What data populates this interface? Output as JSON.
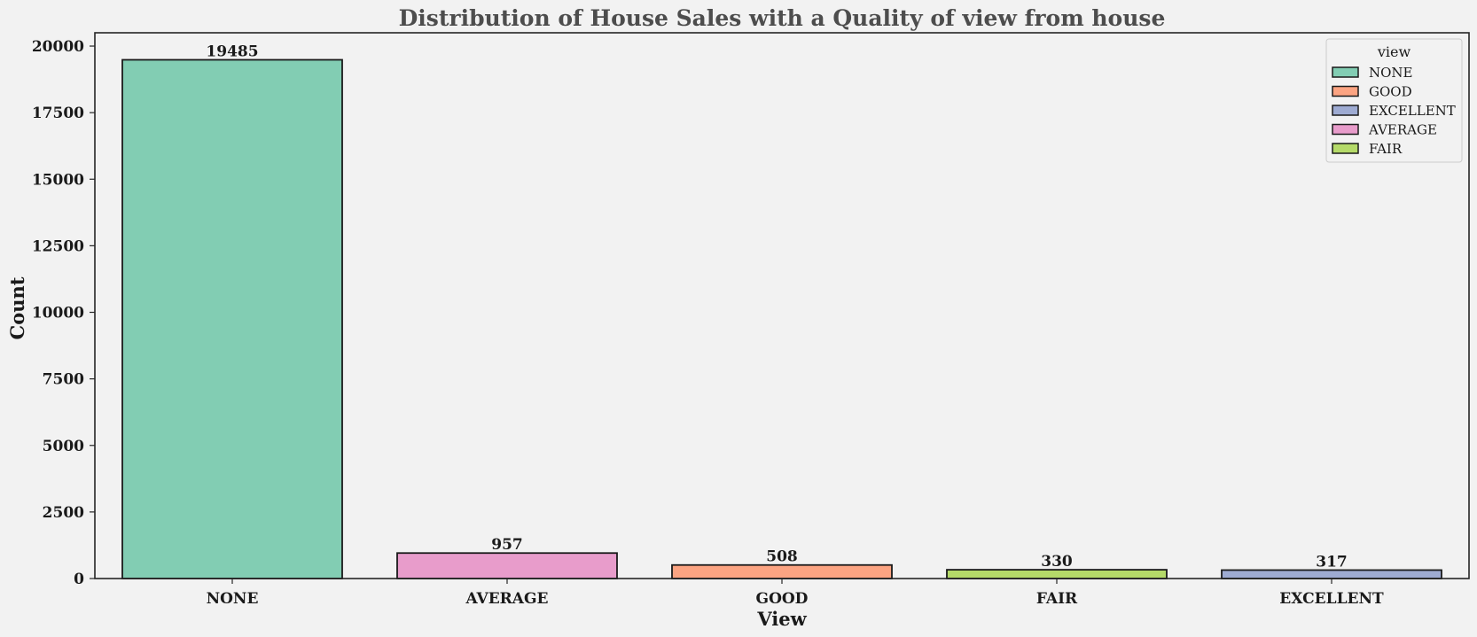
{
  "chart_data": {
    "type": "bar",
    "title": "Distribution of House Sales with a Quality of view from house",
    "xlabel": "View",
    "ylabel": "Count",
    "categories": [
      "NONE",
      "AVERAGE",
      "GOOD",
      "FAIR",
      "EXCELLENT"
    ],
    "values": [
      19485,
      957,
      508,
      330,
      317
    ],
    "data_labels": [
      "19485",
      "957",
      "508",
      "330",
      "317"
    ],
    "bar_colors": [
      "#82cdb3",
      "#e89ccb",
      "#fca482",
      "#b5da69",
      "#9eabd2"
    ],
    "ylim": [
      0,
      20500
    ],
    "yticks": [
      0,
      2500,
      5000,
      7500,
      10000,
      12500,
      15000,
      17500,
      20000
    ],
    "ytick_labels": [
      "0",
      "2500",
      "5000",
      "7500",
      "10000",
      "12500",
      "15000",
      "17500",
      "20000"
    ],
    "grid": false,
    "legend": {
      "title": "view",
      "placement": "top-right",
      "entries": [
        {
          "label": "NONE",
          "color": "#82cdb3"
        },
        {
          "label": "GOOD",
          "color": "#fca482"
        },
        {
          "label": "EXCELLENT",
          "color": "#9eabd2"
        },
        {
          "label": "AVERAGE",
          "color": "#e89ccb"
        },
        {
          "label": "FAIR",
          "color": "#b5da69"
        }
      ]
    }
  }
}
